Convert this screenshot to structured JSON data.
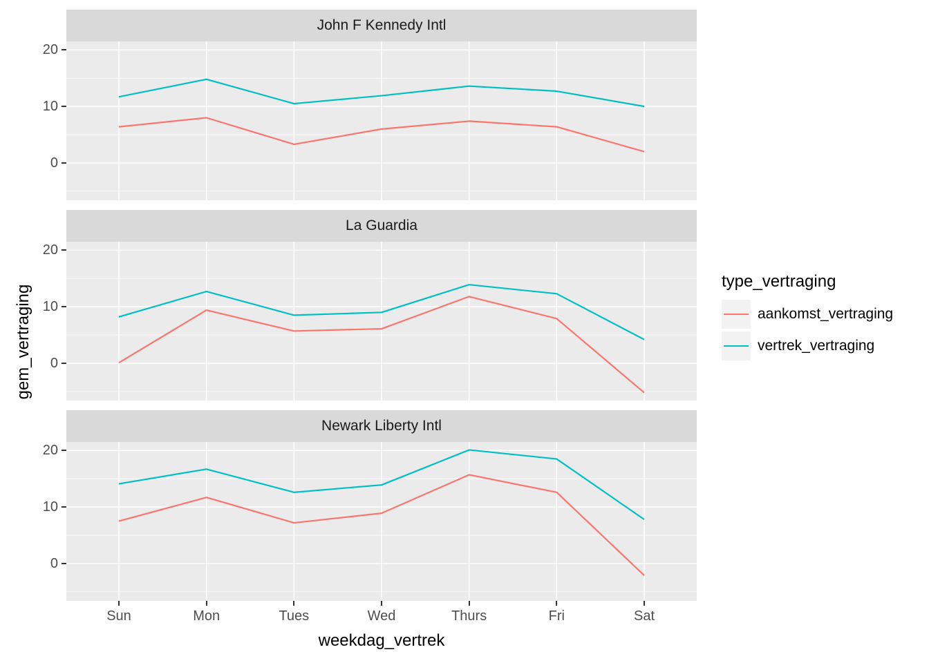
{
  "chart_data": {
    "type": "line",
    "title": "",
    "xlabel": "weekdag_vertrek",
    "ylabel": "gem_vertraging",
    "categories": [
      "Sun",
      "Mon",
      "Tues",
      "Wed",
      "Thurs",
      "Fri",
      "Sat"
    ],
    "ylim": [
      -6.6,
      21.5
    ],
    "yticks": [
      20,
      10,
      0
    ],
    "minor_gridlines": [
      15,
      5,
      -5
    ],
    "grid": "on",
    "legend": {
      "title": "type_vertraging",
      "position": "right",
      "entries": [
        {
          "name": "aankomst_vertraging",
          "color": "#F8766D"
        },
        {
          "name": "vertrek_vertraging",
          "color": "#00BFC4"
        }
      ]
    },
    "facets": [
      {
        "label": "John F Kennedy Intl",
        "series": [
          {
            "name": "aankomst_vertraging",
            "color": "#F8766D",
            "values": [
              6.4,
              8.0,
              3.3,
              6.0,
              7.4,
              6.4,
              2.0
            ]
          },
          {
            "name": "vertrek_vertraging",
            "color": "#00BFC4",
            "values": [
              11.7,
              14.8,
              10.5,
              11.9,
              13.6,
              12.7,
              10.0
            ]
          }
        ]
      },
      {
        "label": "La Guardia",
        "series": [
          {
            "name": "aankomst_vertraging",
            "color": "#F8766D",
            "values": [
              0.1,
              9.4,
              5.7,
              6.1,
              11.8,
              7.9,
              -5.2
            ]
          },
          {
            "name": "vertrek_vertraging",
            "color": "#00BFC4",
            "values": [
              8.2,
              12.7,
              8.5,
              9.0,
              13.9,
              12.3,
              4.2
            ]
          }
        ]
      },
      {
        "label": "Newark Liberty Intl",
        "series": [
          {
            "name": "aankomst_vertraging",
            "color": "#F8766D",
            "values": [
              7.5,
              11.7,
              7.2,
              8.9,
              15.7,
              12.6,
              -2.1
            ]
          },
          {
            "name": "vertrek_vertraging",
            "color": "#00BFC4",
            "values": [
              14.1,
              16.7,
              12.6,
              13.9,
              20.1,
              18.5,
              7.8
            ]
          }
        ]
      }
    ]
  },
  "colors": {
    "panel_background": "#EBEBEB",
    "strip_background": "#D9D9D9",
    "gridline": "#FFFFFF",
    "axis_text": "#4D4D4D",
    "tick_mark": "#333333",
    "legend_key_background": "#F2F2F2",
    "series_aankomst": "#F8766D",
    "series_vertrek": "#00BFC4"
  }
}
